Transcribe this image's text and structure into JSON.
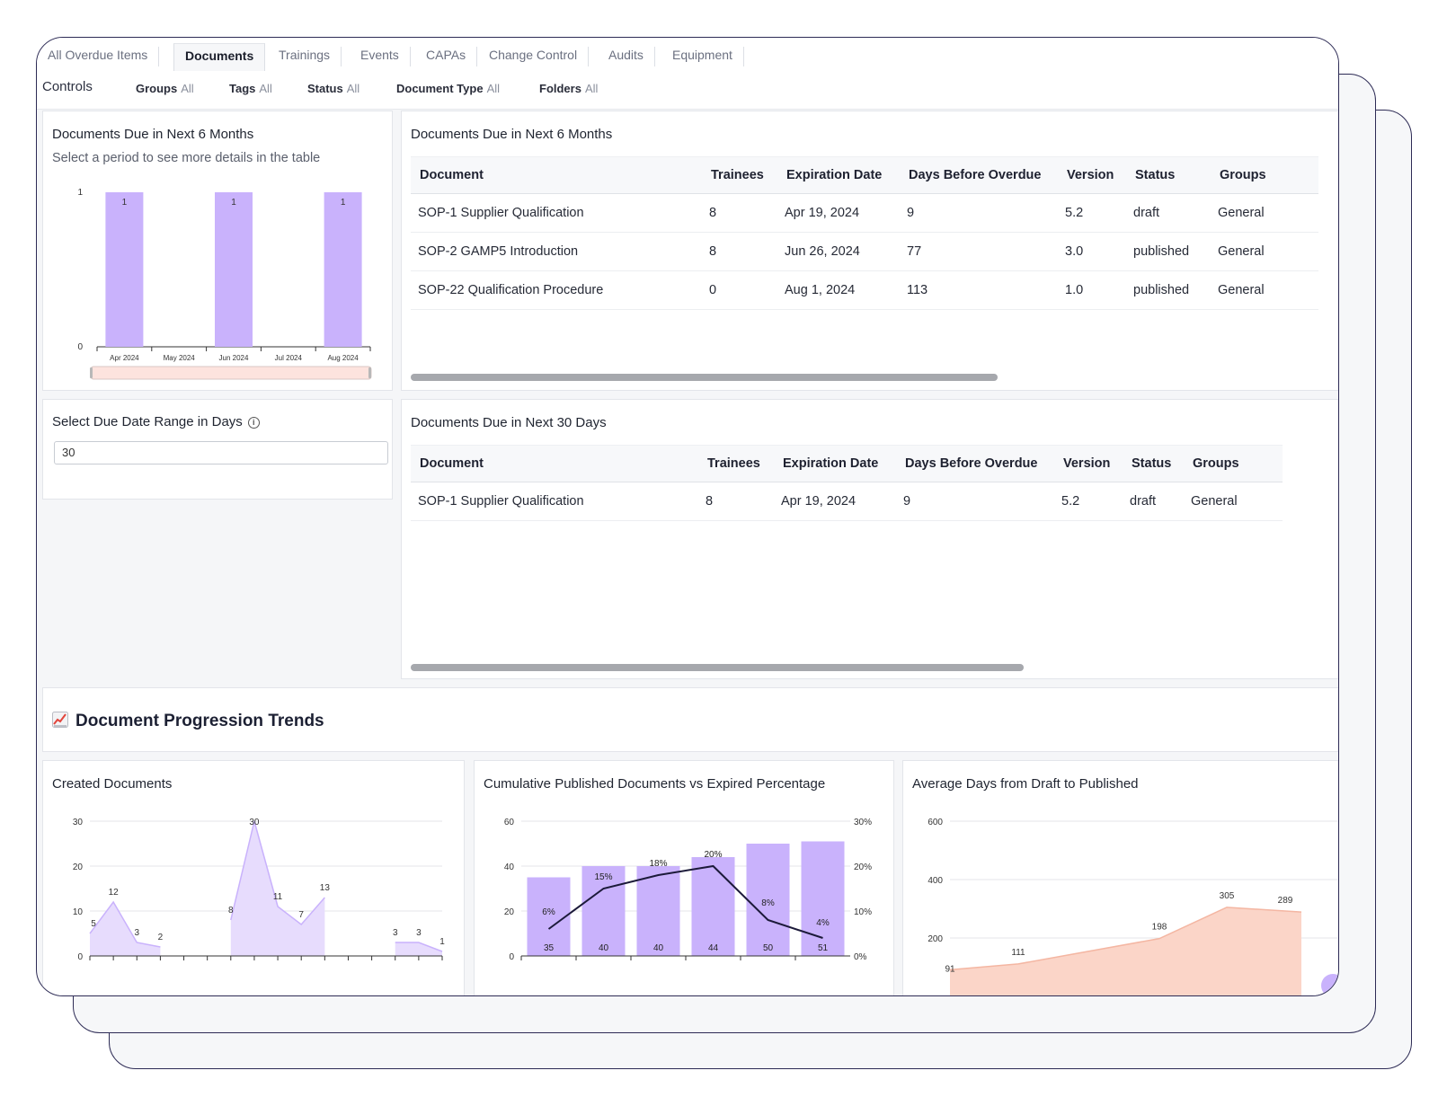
{
  "tabs": [
    "All Overdue Items",
    "Documents",
    "Trainings",
    "Events",
    "CAPAs",
    "Change Control",
    "Audits",
    "Equipment"
  ],
  "active_tab": "Documents",
  "controls": {
    "title": "Controls",
    "filters": [
      {
        "label": "Groups",
        "value": "All"
      },
      {
        "label": "Tags",
        "value": "All"
      },
      {
        "label": "Status",
        "value": "All"
      },
      {
        "label": "Document Type",
        "value": "All"
      },
      {
        "label": "Folders",
        "value": "All"
      }
    ]
  },
  "months_chart_panel": {
    "title": "Documents Due in Next 6 Months",
    "subtitle": "Select a period to see more details in the table"
  },
  "table6": {
    "title": "Documents Due in Next 6 Months",
    "columns": [
      "Document",
      "Trainees",
      "Expiration Date",
      "Days Before Overdue",
      "Version",
      "Status",
      "Groups"
    ],
    "rows": [
      [
        "SOP-1 Supplier Qualification",
        "8",
        "Apr 19, 2024",
        "9",
        "5.2",
        "draft",
        "General"
      ],
      [
        "SOP-2 GAMP5 Introduction",
        "8",
        "Jun 26, 2024",
        "77",
        "3.0",
        "published",
        "General"
      ],
      [
        "SOP-22 Qualification Procedure",
        "0",
        "Aug 1, 2024",
        "113",
        "1.0",
        "published",
        "General"
      ]
    ]
  },
  "range": {
    "title": "Select Due Date Range in Days",
    "value": "30"
  },
  "table30": {
    "title": "Documents Due in Next 30 Days",
    "columns": [
      "Document",
      "Trainees",
      "Expiration Date",
      "Days Before Overdue",
      "Version",
      "Status",
      "Groups"
    ],
    "rows": [
      [
        "SOP-1 Supplier Qualification",
        "8",
        "Apr 19, 2024",
        "9",
        "5.2",
        "draft",
        "General"
      ]
    ]
  },
  "trends": {
    "title": "Document Progression Trends",
    "icon": "chart-increasing-icon"
  },
  "created_panel": {
    "title": "Created Documents"
  },
  "cumulative_panel": {
    "title": "Cumulative Published Documents vs Expired Percentage"
  },
  "avgdays_panel": {
    "title": "Average Days from Draft to Published"
  },
  "colors": {
    "accent": "#c9b2fc",
    "accent_dark": "#b39ae8",
    "area_purple": "#e7dcfd",
    "area_peach": "#fbd5c8",
    "line": "#1c1a3a"
  },
  "chart_data": [
    {
      "type": "bar",
      "categories": [
        "Apr 2024",
        "May 2024",
        "Jun 2024",
        "Jul 2024",
        "Aug 2024"
      ],
      "values": [
        1,
        0,
        1,
        0,
        1
      ],
      "ylim": [
        0,
        1
      ],
      "yticks": [
        "0",
        "1"
      ],
      "data_labels": [
        "1",
        "",
        "1",
        "",
        "1"
      ]
    },
    {
      "type": "area",
      "title": "Created Documents",
      "values": [
        5,
        12,
        3,
        2,
        null,
        null,
        8,
        30,
        11,
        7,
        13,
        null,
        null,
        3,
        3,
        1
      ],
      "data_labels": [
        "5",
        "12",
        "3",
        "2",
        "",
        "",
        "8",
        "30",
        "11",
        "7",
        "13",
        "",
        "",
        "3",
        "3",
        "1"
      ],
      "ylim": [
        0,
        30
      ],
      "yticks": [
        "0",
        "10",
        "20",
        "30"
      ]
    },
    {
      "type": "bar",
      "title": "Cumulative Published Documents vs Expired Percentage",
      "bar_values": [
        35,
        40,
        40,
        44,
        50,
        51
      ],
      "bar_labels": [
        "35",
        "40",
        "40",
        "44",
        "50",
        "51"
      ],
      "line_values": [
        6,
        15,
        18,
        20,
        8,
        4
      ],
      "line_labels": [
        "6%",
        "15%",
        "18%",
        "20%",
        "8%",
        "4%"
      ],
      "ylim": [
        0,
        60
      ],
      "y2lim": [
        0,
        30
      ],
      "yticks": [
        "0",
        "20",
        "40",
        "60"
      ],
      "y2ticks": [
        "0%",
        "10%",
        "20%",
        "30%"
      ]
    },
    {
      "type": "area",
      "title": "Average Days from Draft to Published",
      "values": [
        91,
        111,
        198,
        305,
        289
      ],
      "data_labels": [
        "91",
        "111",
        "198",
        "305",
        "289"
      ],
      "ylim": [
        0,
        600
      ],
      "yticks": [
        "200",
        "400",
        "600"
      ]
    }
  ]
}
